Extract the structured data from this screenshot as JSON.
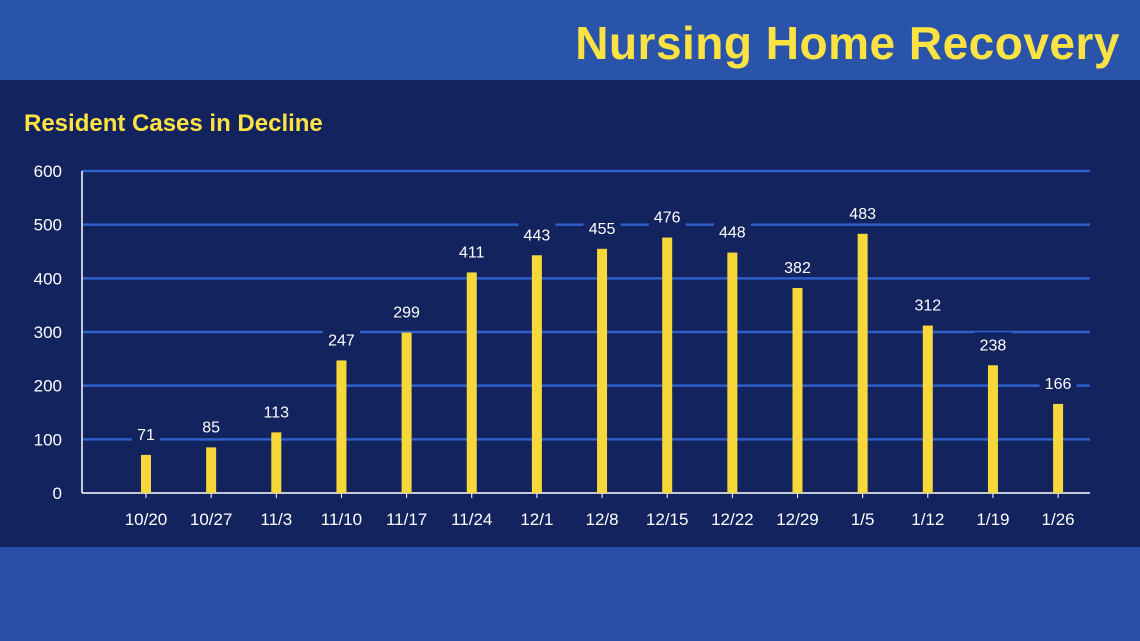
{
  "header": {
    "title": "Nursing Home Recovery"
  },
  "colors": {
    "background_blue": "#2850a8",
    "panel_navy": "#13235d",
    "title_yellow": "#fde244",
    "bar_yellow": "#f7d83a",
    "gridline_blue": "#2f5fc8",
    "text_white": "#ffffff"
  },
  "chart_data": {
    "type": "bar",
    "title": "Resident Cases in Decline",
    "xlabel": "",
    "ylabel": "",
    "categories": [
      "10/20",
      "10/27",
      "11/3",
      "11/10",
      "11/17",
      "11/24",
      "12/1",
      "12/8",
      "12/15",
      "12/22",
      "12/29",
      "1/5",
      "1/12",
      "1/19",
      "1/26"
    ],
    "values": [
      71,
      85,
      113,
      247,
      299,
      411,
      443,
      455,
      476,
      448,
      382,
      483,
      312,
      238,
      166
    ],
    "ylim": [
      0,
      600
    ],
    "yticks": [
      0,
      100,
      200,
      300,
      400,
      500,
      600
    ],
    "grid": true,
    "legend": "none",
    "data_labels": true
  }
}
